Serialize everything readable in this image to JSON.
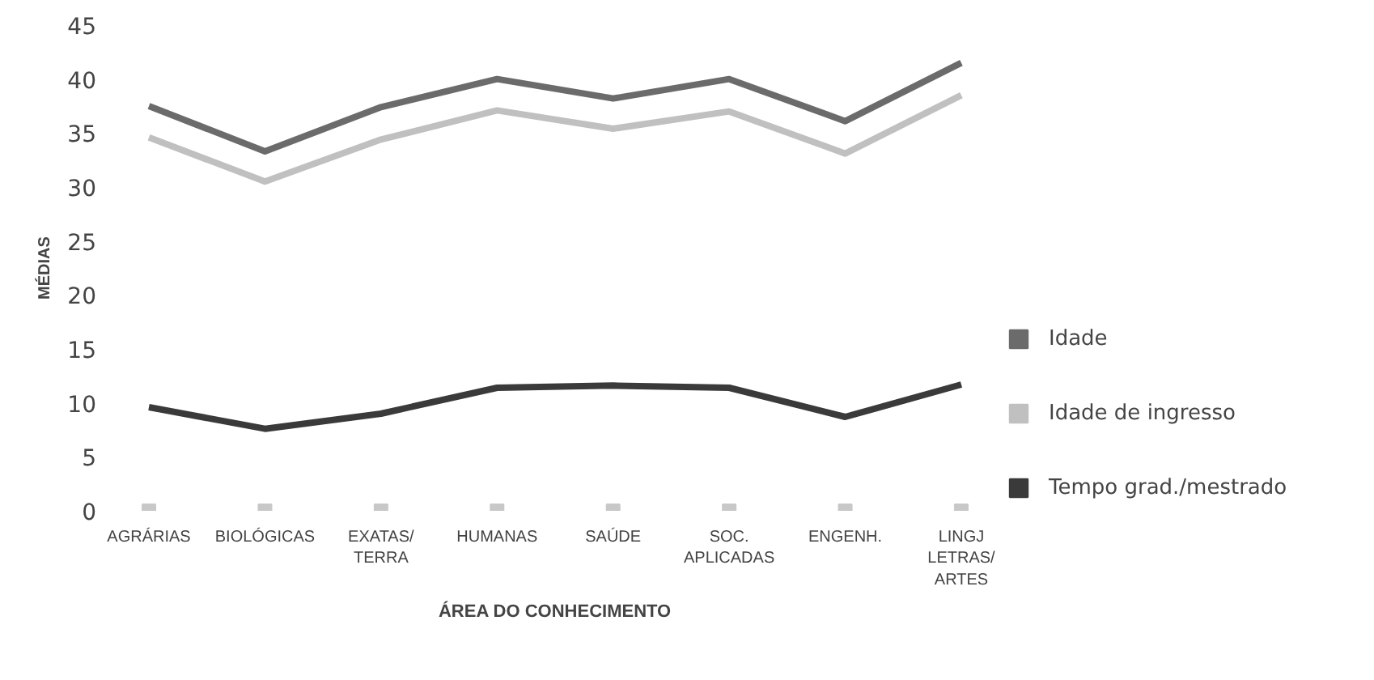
{
  "chart_data": {
    "type": "line",
    "xlabel": "ÁREA DO CONHECIMENTO",
    "ylabel": "MÉDIAS",
    "categories": [
      "AGRÁRIAS",
      "BIOLÓGICAS",
      "EXATAS/\nTERRA",
      "HUMANAS",
      "SAÚDE",
      "SOC.\nAPLICADAS",
      "ENGENH.",
      "LINGJ\nLETRAS/\nARTES"
    ],
    "ylim": [
      0,
      45
    ],
    "yticks": [
      0,
      5,
      10,
      15,
      20,
      25,
      30,
      35,
      40,
      45
    ],
    "legend": "right",
    "grid": false,
    "marker": "none",
    "line_style": "solid",
    "series": [
      {
        "name": "Idade",
        "color": "#6b6b6b",
        "values": [
          37.5,
          33.3,
          37.4,
          40,
          38.2,
          40,
          36.1,
          41.5
        ]
      },
      {
        "name": "Idade de ingresso",
        "color": "#c0c0c0",
        "values": [
          34.6,
          30.5,
          34.4,
          37.1,
          35.4,
          37,
          33.1,
          38.5
        ]
      },
      {
        "name": "Tempo grad./mestrado",
        "color": "#3a3a3a",
        "values": [
          9.6,
          7.6,
          9,
          11.4,
          11.6,
          11.4,
          8.7,
          11.7
        ]
      },
      {
        "type": "scatter",
        "marker": "square",
        "color": "#c8c8c8",
        "values": [
          0,
          0,
          0,
          0,
          0,
          0,
          0,
          0
        ]
      }
    ]
  }
}
